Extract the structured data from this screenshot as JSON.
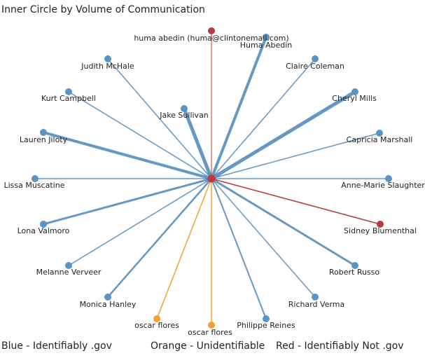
{
  "title": "Inner Circle by Volume of Communication",
  "legend": {
    "blue": "Blue - Identifiably .gov",
    "orange": "Orange - Unidentifiable",
    "red": "Red - Identifiably Not .gov"
  },
  "colors": {
    "blue": "#4a86b8",
    "blue_node": "#5b93c4",
    "orange": "#f5a030",
    "red": "#b83a3a",
    "center": "#c0393b"
  },
  "contacts": [
    {
      "name": "huma abedin (huma@clintonemail.com)",
      "category": "red",
      "weight": 1
    },
    {
      "name": "Huma Abedin",
      "category": "blue",
      "weight": 4
    },
    {
      "name": "Claire Coleman",
      "category": "blue",
      "weight": 1.5
    },
    {
      "name": "Cheryl Mills",
      "category": "blue",
      "weight": 5
    },
    {
      "name": "Capricia Marshall",
      "category": "blue",
      "weight": 1.5
    },
    {
      "name": "Anne-Marie Slaughter",
      "category": "blue",
      "weight": 1.5
    },
    {
      "name": "Sidney Blumenthal",
      "category": "red",
      "weight": 1.5
    },
    {
      "name": "Robert Russo",
      "category": "blue",
      "weight": 3
    },
    {
      "name": "Richard Verma",
      "category": "blue",
      "weight": 1.5
    },
    {
      "name": "Philippe Reines",
      "category": "blue",
      "weight": 2
    },
    {
      "name": "oscar flores",
      "category": "orange",
      "weight": 1.5
    },
    {
      "name": "oscar flores",
      "category": "orange",
      "weight": 1.5
    },
    {
      "name": "Monica Hanley",
      "category": "blue",
      "weight": 2.5
    },
    {
      "name": "Melanne Verveer",
      "category": "blue",
      "weight": 1.5
    },
    {
      "name": "Lona Valmoro",
      "category": "blue",
      "weight": 3
    },
    {
      "name": "Lissa Muscatine",
      "category": "blue",
      "weight": 1.5
    },
    {
      "name": "Lauren Jiloty",
      "category": "blue",
      "weight": 4
    },
    {
      "name": "Kurt Campbell",
      "category": "blue",
      "weight": 1.5
    },
    {
      "name": "Jake Sullivan",
      "category": "blue",
      "weight": 5
    },
    {
      "name": "Judith McHale",
      "category": "blue",
      "weight": 1.5
    }
  ]
}
